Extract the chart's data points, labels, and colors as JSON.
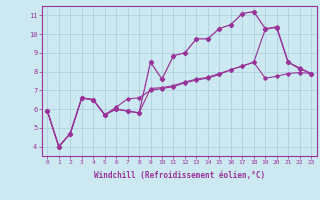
{
  "xlabel": "Windchill (Refroidissement éolien,°C)",
  "background_color": "#cce8f0",
  "grid_color": "#aaccdd",
  "line_color": "#993399",
  "xlim": [
    -0.5,
    23.5
  ],
  "ylim": [
    3.5,
    11.5
  ],
  "xticks": [
    0,
    1,
    2,
    3,
    4,
    5,
    6,
    7,
    8,
    9,
    10,
    11,
    12,
    13,
    14,
    15,
    16,
    17,
    18,
    19,
    20,
    21,
    22,
    23
  ],
  "yticks": [
    4,
    5,
    6,
    7,
    8,
    9,
    10,
    11
  ],
  "series1_x": [
    0,
    1,
    2,
    3,
    4,
    5,
    6,
    7,
    8,
    9,
    10,
    11,
    12,
    13,
    14,
    15,
    16,
    17,
    18,
    19,
    20,
    21,
    22,
    23
  ],
  "series1_y": [
    5.9,
    4.0,
    4.7,
    6.6,
    6.5,
    5.7,
    6.0,
    5.9,
    5.8,
    8.5,
    7.6,
    8.85,
    9.0,
    9.75,
    9.75,
    10.3,
    10.5,
    11.1,
    11.2,
    10.3,
    10.35,
    8.5,
    8.15,
    7.9
  ],
  "series2_x": [
    0,
    1,
    2,
    3,
    4,
    5,
    6,
    7,
    8,
    9,
    10,
    11,
    12,
    13,
    14,
    15,
    16,
    17,
    18,
    19,
    20,
    21,
    22,
    23
  ],
  "series2_y": [
    5.9,
    4.0,
    4.7,
    6.6,
    6.5,
    5.7,
    6.1,
    6.55,
    6.6,
    7.0,
    7.1,
    7.2,
    7.4,
    7.55,
    7.65,
    7.85,
    8.1,
    8.3,
    8.5,
    7.65,
    7.75,
    7.9,
    7.95,
    7.9
  ],
  "series3_x": [
    0,
    1,
    2,
    3,
    4,
    5,
    6,
    7,
    8,
    9,
    10,
    11,
    12,
    13,
    14,
    15,
    16,
    17,
    18,
    19,
    20,
    21,
    22,
    23
  ],
  "series3_y": [
    5.9,
    4.0,
    4.7,
    6.6,
    6.5,
    5.7,
    6.0,
    5.9,
    5.8,
    7.1,
    7.15,
    7.25,
    7.45,
    7.6,
    7.7,
    7.9,
    8.1,
    8.3,
    8.5,
    10.25,
    10.4,
    8.5,
    8.2,
    7.9
  ]
}
